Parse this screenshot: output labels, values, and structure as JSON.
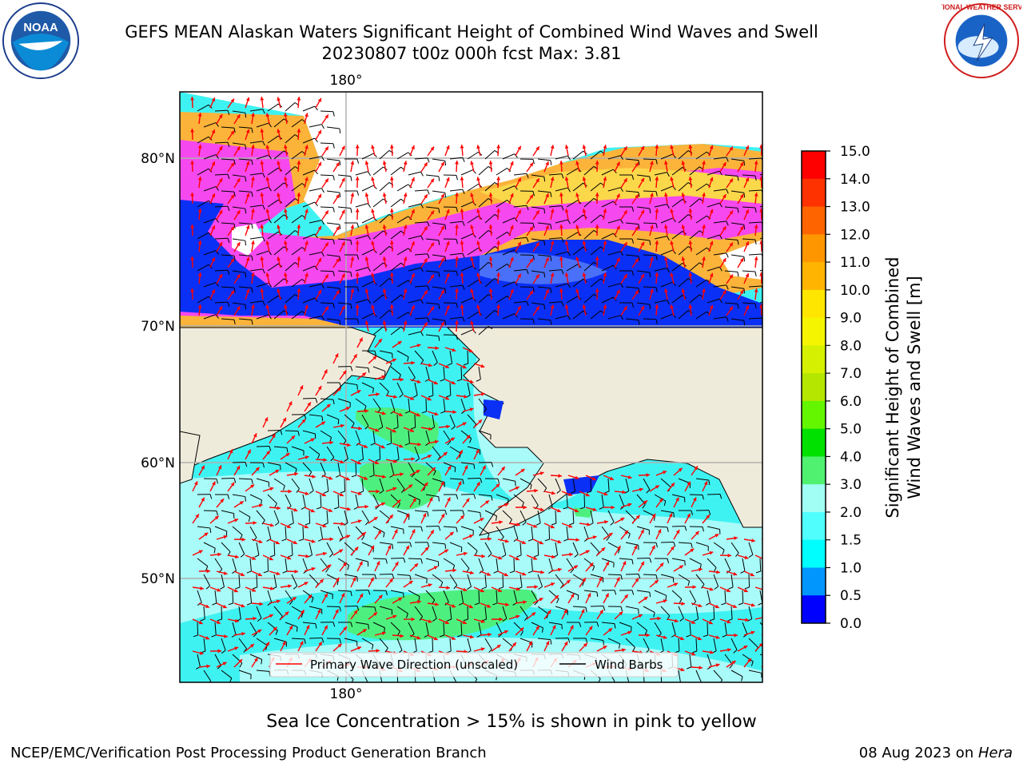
{
  "title_line1": "GEFS MEAN Alaskan Waters Significant Height of Combined Wind Waves and Swell",
  "title_line2": "20230807 t00z 000h fcst   Max: 3.81",
  "logos": {
    "left": "NOAA",
    "right": "NATIONAL WEATHER SERVICE"
  },
  "map": {
    "lon_top_label": "180°",
    "lon_bottom_label": "180°",
    "lat_labels": [
      "80°N",
      "70°N",
      "60°N",
      "50°N"
    ],
    "colors": {
      "land": "#efebdb",
      "ocean_light": "#a8fbf9",
      "ocean_mid": "#3ff2f2",
      "ocean_green": "#4df07e",
      "ice_pink": "#f548ee",
      "ice_orange": "#fbb33a",
      "ice_yellow": "#fbd74a",
      "ice_blue": "#0a2ff5",
      "grid": "#b0b0b0",
      "wave_arrow": "#ff0000",
      "wind_barb": "#000000"
    }
  },
  "legend": {
    "wave_label": "Primary Wave Direction (unscaled)",
    "wind_label": "Wind Barbs"
  },
  "colorbar": {
    "label_line1": "Significant Height of Combined",
    "label_line2": "Wind Waves and Swell [m]",
    "ticks": [
      "15.0",
      "14.0",
      "13.0",
      "12.0",
      "11.0",
      "10.0",
      "9.0",
      "8.0",
      "7.0",
      "6.0",
      "5.0",
      "4.0",
      "3.0",
      "2.0",
      "1.5",
      "1.0",
      "0.5",
      "0.0"
    ],
    "colors": [
      "#fe0000",
      "#fe3200",
      "#fe6400",
      "#fe9600",
      "#feb400",
      "#fee600",
      "#f5f500",
      "#d5f000",
      "#b4e600",
      "#64f500",
      "#00e100",
      "#50f070",
      "#a0fef5",
      "#50fefe",
      "#00fefe",
      "#0096fe",
      "#0000fe"
    ]
  },
  "ice_note": "Sea Ice Concentration > 15% is shown in pink to yellow",
  "footer_left": "NCEP/EMC/Verification Post Processing Product Generation Branch",
  "footer_right_date": "08 Aug 2023 on ",
  "footer_right_host": "Hera"
}
